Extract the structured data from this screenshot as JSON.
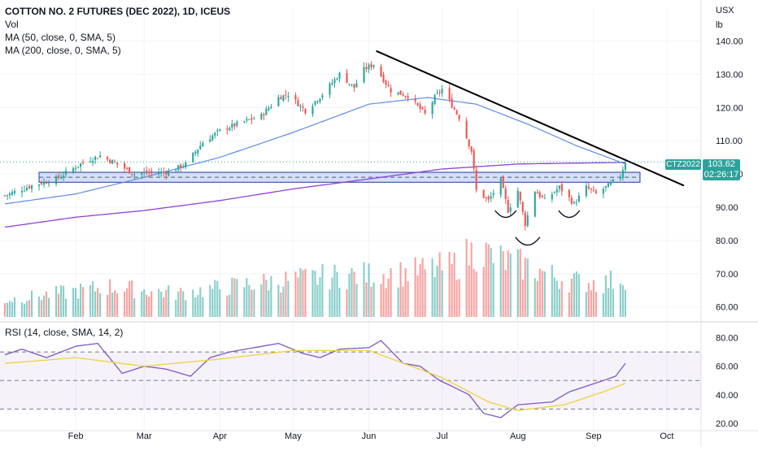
{
  "header": {
    "title": "COTTON NO. 2 FUTURES (DEC 2022), 1D, ICEUS",
    "studies": [
      "Vol",
      "MA (50, close, 0, SMA, 5)",
      "MA (200, close, 0, SMA, 5)"
    ]
  },
  "rsi_panel": {
    "label": "RSI (14, close, SMA, 14, 2)"
  },
  "price_axis": {
    "currency": "USX",
    "unit": "lb"
  },
  "last_price": {
    "symbol": "CTZ2022",
    "price": "103.62",
    "countdown": "02:26:17"
  },
  "colors": {
    "up": "#26a69a",
    "down": "#ef5350",
    "ma50": "#5b8de6",
    "ma200": "#8e44d6",
    "rsi": "#7e57c2",
    "rsi_ma": "#f0d23c",
    "band": "#c9d3f5",
    "trendline": "#000000"
  },
  "chart_data": [
    {
      "type": "candlestick",
      "title": "COTTON NO. 2 FUTURES (DEC 2022), 1D, ICEUS",
      "ylabel": "USX/lb",
      "ylim": [
        57,
        145
      ],
      "y_ticks": [
        "60.00",
        "70.00",
        "80.00",
        "90.00",
        "100.00",
        "110.00",
        "120.00",
        "130.00",
        "140.00"
      ],
      "x_ticks": [
        "Feb",
        "Mar",
        "Apr",
        "May",
        "Jun",
        "Jul",
        "Aug",
        "Sep",
        "Oct"
      ],
      "x_tick_dates": [
        "2022-02-01",
        "2022-03-01",
        "2022-04-01",
        "2022-05-01",
        "2022-06-01",
        "2022-07-01",
        "2022-08-01",
        "2022-09-01",
        "2022-10-01"
      ],
      "close_keypoints": [
        [
          "2022-01-03",
          93.5
        ],
        [
          "2022-01-14",
          96.5
        ],
        [
          "2022-01-24",
          98.5
        ],
        [
          "2022-02-04",
          103.5
        ],
        [
          "2022-02-11",
          105.5
        ],
        [
          "2022-02-18",
          103.0
        ],
        [
          "2022-02-25",
          100.0
        ],
        [
          "2022-03-04",
          100.5
        ],
        [
          "2022-03-11",
          100.5
        ],
        [
          "2022-03-18",
          103.0
        ],
        [
          "2022-03-25",
          109.5
        ],
        [
          "2022-04-01",
          113.0
        ],
        [
          "2022-04-08",
          115.0
        ],
        [
          "2022-04-18",
          117.5
        ],
        [
          "2022-04-25",
          123.0
        ],
        [
          "2022-04-29",
          124.0
        ],
        [
          "2022-05-06",
          119.0
        ],
        [
          "2022-05-13",
          124.0
        ],
        [
          "2022-05-20",
          130.0
        ],
        [
          "2022-05-26",
          126.0
        ],
        [
          "2022-05-30",
          131.5
        ],
        [
          "2022-06-03",
          133.0
        ],
        [
          "2022-06-10",
          125.0
        ],
        [
          "2022-06-17",
          123.5
        ],
        [
          "2022-06-24",
          118.0
        ],
        [
          "2022-06-28",
          123.0
        ],
        [
          "2022-07-01",
          125.5
        ],
        [
          "2022-07-08",
          117.0
        ],
        [
          "2022-07-13",
          107.0
        ],
        [
          "2022-07-15",
          95.0
        ],
        [
          "2022-07-20",
          92.0
        ],
        [
          "2022-07-25",
          98.0
        ],
        [
          "2022-07-28",
          89.0
        ],
        [
          "2022-08-01",
          95.0
        ],
        [
          "2022-08-04",
          85.0
        ],
        [
          "2022-08-08",
          95.0
        ],
        [
          "2022-08-12",
          92.0
        ],
        [
          "2022-08-18",
          96.0
        ],
        [
          "2022-08-24",
          91.0
        ],
        [
          "2022-08-29",
          96.0
        ],
        [
          "2022-09-02",
          94.0
        ],
        [
          "2022-09-07",
          96.5
        ],
        [
          "2022-09-12",
          99.5
        ],
        [
          "2022-09-14",
          103.62
        ]
      ],
      "ma50_keypoints": [
        [
          "2022-01-03",
          91.0
        ],
        [
          "2022-02-01",
          94.0
        ],
        [
          "2022-03-01",
          99.0
        ],
        [
          "2022-04-01",
          105.0
        ],
        [
          "2022-05-01",
          112.5
        ],
        [
          "2022-06-01",
          121.0
        ],
        [
          "2022-06-25",
          123.0
        ],
        [
          "2022-07-15",
          121.0
        ],
        [
          "2022-08-05",
          115.0
        ],
        [
          "2022-08-25",
          108.5
        ],
        [
          "2022-09-14",
          103.0
        ]
      ],
      "ma200_keypoints": [
        [
          "2022-01-03",
          84.0
        ],
        [
          "2022-02-01",
          87.0
        ],
        [
          "2022-03-01",
          89.0
        ],
        [
          "2022-04-01",
          92.0
        ],
        [
          "2022-05-01",
          95.5
        ],
        [
          "2022-06-01",
          98.5
        ],
        [
          "2022-07-01",
          101.5
        ],
        [
          "2022-08-01",
          103.0
        ],
        [
          "2022-09-14",
          103.5
        ]
      ],
      "resistance_band": [
        97.5,
        100.5
      ],
      "support_dashed_level": 99.0,
      "trendline": [
        [
          "2022-06-04",
          137.0
        ],
        [
          "2022-10-08",
          96.5
        ]
      ],
      "last_price_line": 103.62,
      "pattern": "inverse head and shoulders"
    },
    {
      "type": "bar",
      "title": "Vol",
      "note": "relative volume bars overlaid on price pane, colored by candle direction",
      "relative_volume_keypoints": [
        [
          "2022-01-03",
          0.25
        ],
        [
          "2022-02-15",
          0.45
        ],
        [
          "2022-03-15",
          0.35
        ],
        [
          "2022-04-15",
          0.5
        ],
        [
          "2022-05-15",
          0.6
        ],
        [
          "2022-06-15",
          0.65
        ],
        [
          "2022-07-05",
          0.75
        ],
        [
          "2022-07-15",
          1.0
        ],
        [
          "2022-07-25",
          0.85
        ],
        [
          "2022-08-05",
          0.75
        ],
        [
          "2022-08-20",
          0.55
        ],
        [
          "2022-09-05",
          0.5
        ],
        [
          "2022-09-14",
          0.6
        ]
      ]
    },
    {
      "type": "line",
      "title": "RSI (14, close, SMA, 14, 2)",
      "ylim": [
        16,
        86
      ],
      "y_ticks": [
        "20.00",
        "40.00",
        "60.00",
        "80.00"
      ],
      "levels": [
        70,
        50,
        30
      ],
      "rsi_keypoints": [
        [
          "2022-01-03",
          68
        ],
        [
          "2022-01-10",
          72
        ],
        [
          "2022-01-20",
          66
        ],
        [
          "2022-02-01",
          74
        ],
        [
          "2022-02-10",
          76
        ],
        [
          "2022-02-20",
          55
        ],
        [
          "2022-03-01",
          60
        ],
        [
          "2022-03-10",
          58
        ],
        [
          "2022-03-20",
          53
        ],
        [
          "2022-03-28",
          66
        ],
        [
          "2022-04-05",
          70
        ],
        [
          "2022-04-15",
          73
        ],
        [
          "2022-04-25",
          76
        ],
        [
          "2022-05-05",
          69
        ],
        [
          "2022-05-12",
          66
        ],
        [
          "2022-05-20",
          72
        ],
        [
          "2022-06-01",
          73
        ],
        [
          "2022-06-06",
          78
        ],
        [
          "2022-06-15",
          62
        ],
        [
          "2022-06-22",
          60
        ],
        [
          "2022-06-30",
          50
        ],
        [
          "2022-07-05",
          46
        ],
        [
          "2022-07-12",
          40
        ],
        [
          "2022-07-18",
          27
        ],
        [
          "2022-07-25",
          24
        ],
        [
          "2022-08-01",
          33
        ],
        [
          "2022-08-08",
          34
        ],
        [
          "2022-08-15",
          35
        ],
        [
          "2022-08-22",
          42
        ],
        [
          "2022-08-29",
          46
        ],
        [
          "2022-09-05",
          50
        ],
        [
          "2022-09-10",
          53
        ],
        [
          "2022-09-14",
          62
        ]
      ],
      "rsi_ma_keypoints": [
        [
          "2022-01-03",
          62
        ],
        [
          "2022-02-01",
          66
        ],
        [
          "2022-03-01",
          60
        ],
        [
          "2022-04-01",
          65
        ],
        [
          "2022-05-01",
          71
        ],
        [
          "2022-06-01",
          71
        ],
        [
          "2022-07-01",
          52
        ],
        [
          "2022-07-20",
          35
        ],
        [
          "2022-08-01",
          29
        ],
        [
          "2022-08-20",
          33
        ],
        [
          "2022-09-05",
          42
        ],
        [
          "2022-09-14",
          48
        ]
      ]
    }
  ]
}
